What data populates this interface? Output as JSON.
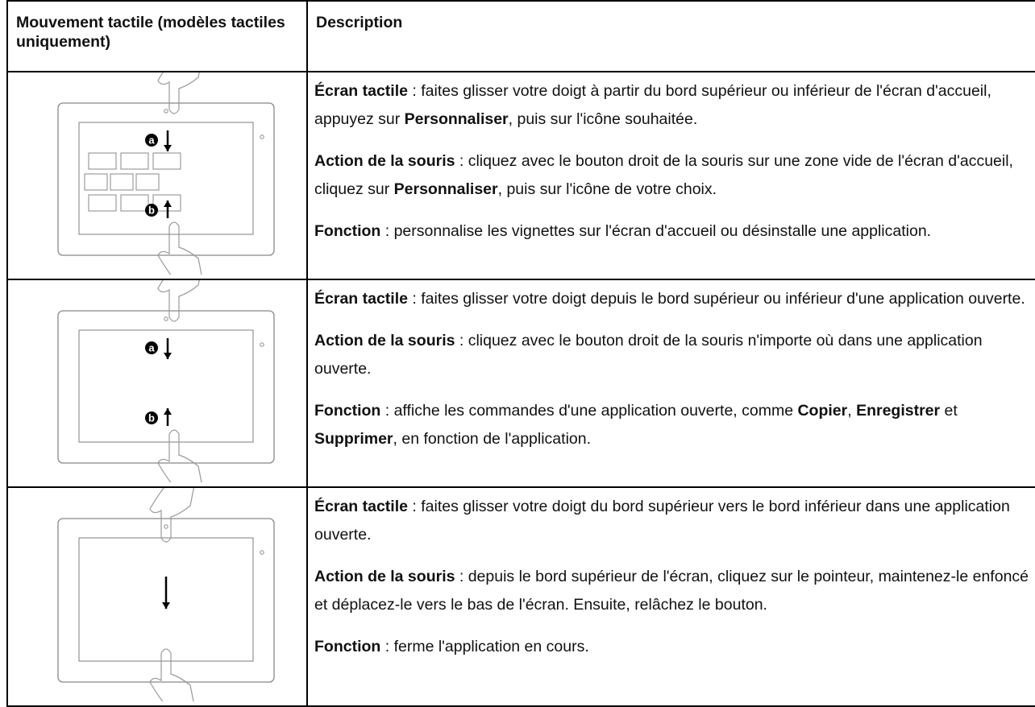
{
  "table": {
    "headers": [
      "Mouvement tactile (modèles tactiles uniquement)",
      "Description"
    ],
    "rows": [
      {
        "markers": [
          "a",
          "b"
        ],
        "paragraphs": [
          [
            {
              "bold": "Écran tactile"
            },
            {
              "text": " : faites glisser votre doigt à partir du bord supérieur ou inférieur de l'écran d'accueil, appuyez sur "
            },
            {
              "bold": "Personnaliser"
            },
            {
              "text": ", puis sur l'icône souhaitée."
            }
          ],
          [
            {
              "bold": "Action de la souris"
            },
            {
              "text": " : cliquez avec le bouton droit de la souris sur une zone vide de l'écran d'accueil, cliquez sur "
            },
            {
              "bold": "Personnaliser"
            },
            {
              "text": ", puis sur l'icône de votre choix."
            }
          ],
          [
            {
              "bold": "Fonction"
            },
            {
              "text": " : personnalise les vignettes sur l'écran d'accueil ou désinstalle une application."
            }
          ]
        ]
      },
      {
        "markers": [
          "a",
          "b"
        ],
        "paragraphs": [
          [
            {
              "bold": "Écran tactile"
            },
            {
              "text": " : faites glisser votre doigt depuis le bord supérieur ou inférieur d'une application ouverte."
            }
          ],
          [
            {
              "bold": "Action de la souris"
            },
            {
              "text": " : cliquez avec le bouton droit de la souris n'importe où dans une application ouverte."
            }
          ],
          [
            {
              "bold": "Fonction"
            },
            {
              "text": " : affiche les commandes d'une application ouverte, comme "
            },
            {
              "bold": "Copier"
            },
            {
              "text": ", "
            },
            {
              "bold": "Enregistrer"
            },
            {
              "text": " et "
            },
            {
              "bold": "Supprimer"
            },
            {
              "text": ", en fonction de l'application."
            }
          ]
        ]
      },
      {
        "markers": [],
        "paragraphs": [
          [
            {
              "bold": "Écran tactile"
            },
            {
              "text": " : faites glisser votre doigt du bord supérieur vers le bord inférieur dans une application ouverte."
            }
          ],
          [
            {
              "bold": "Action de la souris"
            },
            {
              "text": " : depuis le bord supérieur de l'écran, cliquez sur le pointeur, maintenez-le enfoncé et déplacez-le vers le bas de l'écran. Ensuite, relâchez le bouton."
            }
          ],
          [
            {
              "bold": "Fonction"
            },
            {
              "text": " : ferme l'application en cours."
            }
          ]
        ]
      }
    ]
  }
}
